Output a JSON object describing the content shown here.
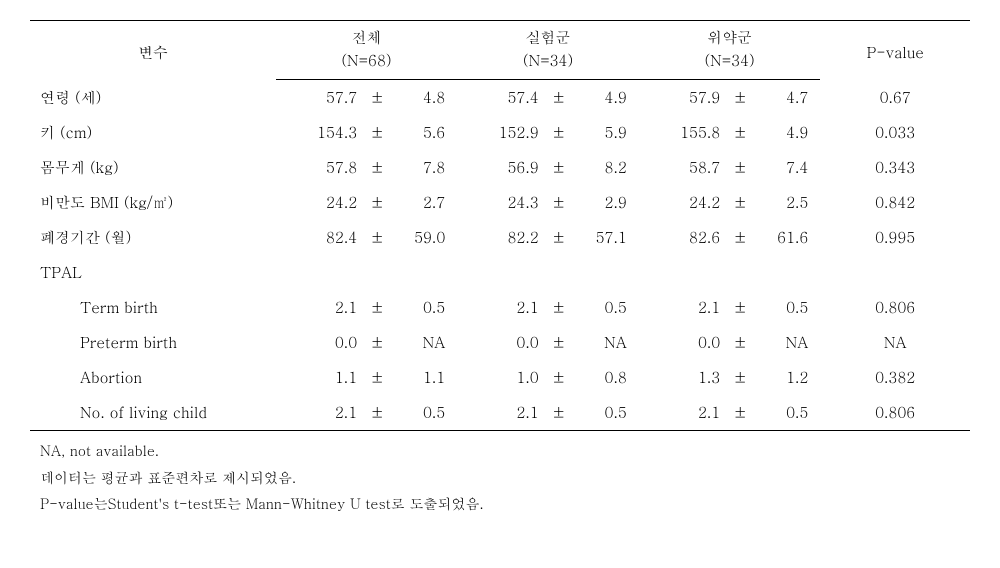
{
  "header": {
    "var_label": "변수",
    "groups": [
      {
        "label": "전체",
        "n": "(N=68)"
      },
      {
        "label": "실험군",
        "n": "(N=34)"
      },
      {
        "label": "위약군",
        "n": "(N=34)"
      }
    ],
    "pvalue_label": "P-value"
  },
  "rows": [
    {
      "var": "연령 (세)",
      "indent": false,
      "g": [
        [
          "57.7",
          "±",
          "4.8"
        ],
        [
          "57.4",
          "±",
          "4.9"
        ],
        [
          "57.9",
          "±",
          "4.7"
        ]
      ],
      "p": "0.67"
    },
    {
      "var": "키 (cm)",
      "indent": false,
      "g": [
        [
          "154.3",
          "±",
          "5.6"
        ],
        [
          "152.9",
          "±",
          "5.9"
        ],
        [
          "155.8",
          "±",
          "4.9"
        ]
      ],
      "p": "0.033"
    },
    {
      "var": "몸무게 (kg)",
      "indent": false,
      "g": [
        [
          "57.8",
          "±",
          "7.8"
        ],
        [
          "56.9",
          "±",
          "8.2"
        ],
        [
          "58.7",
          "±",
          "7.4"
        ]
      ],
      "p": "0.343"
    },
    {
      "var": "비만도 BMI (kg/㎡)",
      "indent": false,
      "g": [
        [
          "24.2",
          "±",
          "2.7"
        ],
        [
          "24.3",
          "±",
          "2.9"
        ],
        [
          "24.2",
          "±",
          "2.5"
        ]
      ],
      "p": "0.842"
    },
    {
      "var": "폐경기간 (월)",
      "indent": false,
      "g": [
        [
          "82.4",
          "±",
          "59.0"
        ],
        [
          "82.2",
          "±",
          "57.1"
        ],
        [
          "82.6",
          "±",
          "61.6"
        ]
      ],
      "p": "0.995"
    },
    {
      "var": "TPAL",
      "indent": false,
      "g": [
        [
          "",
          "",
          ""
        ],
        [
          "",
          "",
          ""
        ],
        [
          "",
          "",
          ""
        ]
      ],
      "p": ""
    },
    {
      "var": "Term birth",
      "indent": true,
      "g": [
        [
          "2.1",
          "±",
          "0.5"
        ],
        [
          "2.1",
          "±",
          "0.5"
        ],
        [
          "2.1",
          "±",
          "0.5"
        ]
      ],
      "p": "0.806"
    },
    {
      "var": "Preterm birth",
      "indent": true,
      "g": [
        [
          "0.0",
          "±",
          "NA"
        ],
        [
          "0.0",
          "±",
          "NA"
        ],
        [
          "0.0",
          "±",
          "NA"
        ]
      ],
      "p": "NA"
    },
    {
      "var": "Abortion",
      "indent": true,
      "g": [
        [
          "1.1",
          "±",
          "1.1"
        ],
        [
          "1.0",
          "±",
          "0.8"
        ],
        [
          "1.3",
          "±",
          "1.2"
        ]
      ],
      "p": "0.382"
    },
    {
      "var": "No. of living child",
      "indent": true,
      "g": [
        [
          "2.1",
          "±",
          "0.5"
        ],
        [
          "2.1",
          "±",
          "0.5"
        ],
        [
          "2.1",
          "±",
          "0.5"
        ]
      ],
      "p": "0.806"
    }
  ],
  "footnotes": [
    "NA, not available.",
    "데이터는 평균과 표준편차로 제시되었음.",
    "P-value는Student's t-test또는 Mann-Whitney U test로 도출되었음."
  ]
}
